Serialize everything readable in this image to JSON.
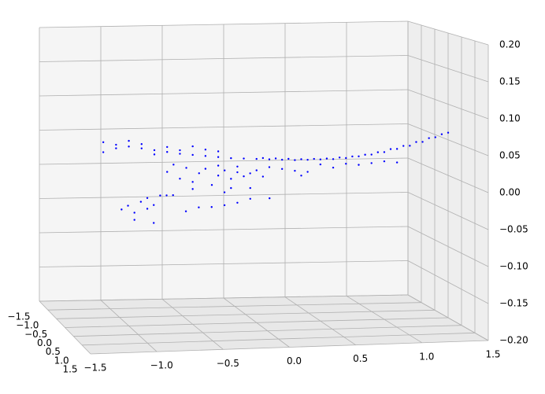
{
  "chart_data": {
    "type": "scatter3d",
    "series": [
      {
        "color": "#0000ff",
        "x": [
          -1.2,
          -1.1,
          -1.0,
          -0.9,
          -0.8,
          -0.7,
          -0.6,
          -0.5,
          -0.4,
          -0.3,
          -0.2,
          -0.1,
          0,
          0.1,
          0.2,
          0.3,
          0.4,
          0.5,
          0.6,
          0.7,
          0.8,
          0.9,
          1.0,
          1.1,
          1.2,
          1.3,
          1.4,
          1.5,
          0.05,
          0.15,
          0.25,
          0.35,
          0.45,
          0.55,
          0.65,
          0.75,
          0.85,
          0.95,
          1.05,
          1.15,
          1.25,
          1.35,
          1.45,
          -0.7,
          -0.6,
          -0.55,
          -0.5,
          -0.45,
          -0.4,
          -0.35,
          -0.3,
          -0.25,
          -0.2,
          -0.15,
          -0.1,
          -0.05,
          0,
          0.05,
          -0.65,
          -0.3,
          -0.15,
          -0.5,
          -0.2,
          -1.1,
          -1.05,
          -1.0,
          -0.95,
          -0.9,
          -0.9,
          -0.85,
          -0.8,
          -0.75,
          -0.7,
          -1.0,
          -0.85,
          -0.6,
          -0.5,
          -0.4,
          -0.3,
          -0.2,
          -0.1,
          0.05,
          -0.3,
          -0.1,
          0.1,
          0.2,
          0.3,
          0.4,
          0.5,
          0.6,
          0.7,
          0.8,
          0.9,
          1.0,
          1.1,
          0.35,
          -1.2,
          -1.1,
          -1.0,
          -0.9,
          -0.8,
          -0.7,
          -0.6,
          -0.5,
          -0.4,
          -0.3
        ],
        "y": [
          0,
          0,
          0,
          0,
          0,
          0,
          0,
          0,
          0,
          0,
          0,
          0,
          0,
          0,
          0,
          0,
          0,
          0,
          0,
          0,
          0,
          0,
          0,
          0,
          0,
          0,
          0,
          0,
          0,
          0,
          0,
          0,
          0,
          0,
          0,
          0,
          0,
          0,
          0,
          0,
          0,
          0,
          0,
          0,
          0,
          0,
          0,
          0,
          0,
          0,
          0,
          0,
          0,
          0,
          0,
          0,
          0,
          0,
          0,
          0,
          0,
          0,
          0,
          0.3,
          0.3,
          0.3,
          0.3,
          0.3,
          0.3,
          0.3,
          0.3,
          0.3,
          0.3,
          0.3,
          0.3,
          0.3,
          0.3,
          0.3,
          0.3,
          0.3,
          0.3,
          0.3,
          0.3,
          0.3,
          0,
          0,
          0,
          0,
          0,
          0,
          0,
          0,
          0,
          0,
          0,
          0,
          0,
          0,
          0,
          0,
          0,
          0,
          0,
          0,
          0,
          0
        ],
        "z": [
          0.059,
          0.055,
          0.052,
          0.049,
          0.046,
          0.043,
          0.04,
          0.038,
          0.036,
          0.034,
          0.032,
          0.031,
          0.03,
          0.029,
          0.028,
          0.027,
          0.027,
          0.027,
          0.027,
          0.028,
          0.03,
          0.032,
          0.035,
          0.039,
          0.043,
          0.048,
          0.054,
          0.06,
          0.031,
          0.03,
          0.029,
          0.028,
          0.028,
          0.028,
          0.029,
          0.03,
          0.032,
          0.035,
          0.039,
          0.043,
          0.048,
          0.053,
          0.058,
          0.015,
          0.005,
          0.02,
          0.0,
          0.012,
          0.018,
          -0.005,
          0.008,
          0.015,
          0.003,
          0.012,
          0.006,
          0.01,
          0.014,
          0.005,
          0.025,
          0.022,
          0.02,
          -0.01,
          -0.01,
          -0.03,
          -0.025,
          -0.035,
          -0.02,
          -0.03,
          -0.015,
          -0.025,
          -0.012,
          -0.012,
          -0.012,
          -0.045,
          -0.05,
          -0.035,
          -0.03,
          -0.03,
          -0.028,
          -0.025,
          -0.02,
          -0.02,
          -0.01,
          -0.005,
          0.018,
          0.015,
          0.012,
          0.01,
          0.02,
          0.015,
          0.02,
          0.018,
          0.02,
          0.022,
          0.02,
          0.005,
          0.045,
          0.05,
          0.06,
          0.055,
          0.04,
          0.05,
          0.045,
          0.05,
          0.045,
          0.042
        ]
      }
    ],
    "xlim": [
      -1.5,
      1.5
    ],
    "ylim": [
      -1.5,
      1.5
    ],
    "zlim": [
      -0.2,
      0.2
    ],
    "xticks": [
      {
        "value": -1.5,
        "label": "−1.5"
      },
      {
        "value": -1.0,
        "label": "−1.0"
      },
      {
        "value": -0.5,
        "label": "−0.5"
      },
      {
        "value": 0,
        "label": "0.0"
      },
      {
        "value": 0.5,
        "label": "0.5"
      },
      {
        "value": 1.0,
        "label": "1.0"
      },
      {
        "value": 1.5,
        "label": "1.5"
      }
    ],
    "yticks": [
      {
        "value": -1.5,
        "label": "−1.5"
      },
      {
        "value": -1.0,
        "label": "−1.0"
      },
      {
        "value": -0.5,
        "label": "−0.5"
      },
      {
        "value": 0,
        "label": "0.0"
      },
      {
        "value": 0.5,
        "label": "0.5"
      },
      {
        "value": 1.0,
        "label": "1.0"
      },
      {
        "value": 1.5,
        "label": "1.5"
      }
    ],
    "zticks": [
      {
        "value": -0.2,
        "label": "−0.20"
      },
      {
        "value": -0.15,
        "label": "−0.15"
      },
      {
        "value": -0.1,
        "label": "−0.10"
      },
      {
        "value": -0.05,
        "label": "−0.05"
      },
      {
        "value": 0,
        "label": "0.00"
      },
      {
        "value": 0.05,
        "label": "0.05"
      },
      {
        "value": 0.1,
        "label": "0.10"
      },
      {
        "value": 0.15,
        "label": "0.15"
      },
      {
        "value": 0.2,
        "label": "0.20"
      }
    ],
    "grid": true
  }
}
